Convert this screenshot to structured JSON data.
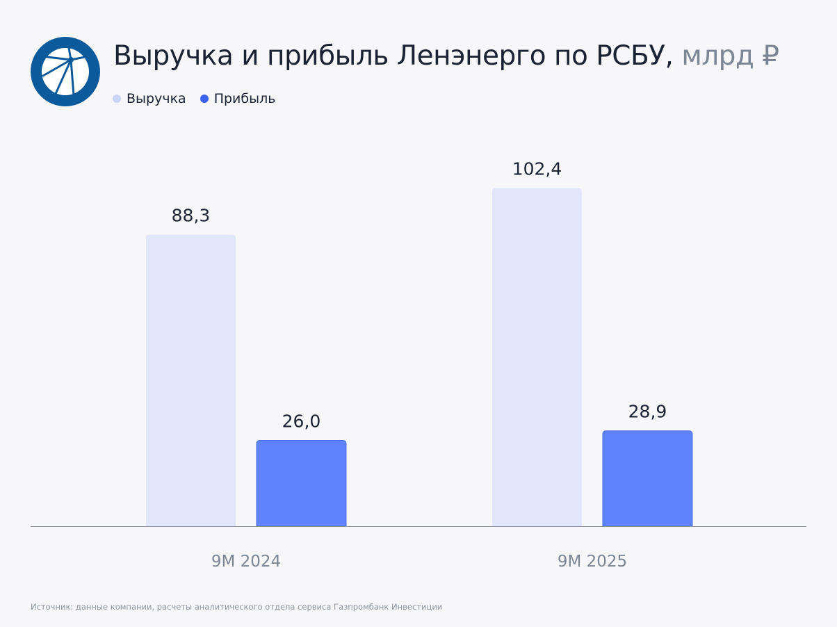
{
  "title": "Выручка и прибыль Ленэнерго по РСБУ,",
  "title_unit": "млрд ₽",
  "logo_icon": "lenenergo-logo",
  "source": "Источник: данные компании, расчеты аналитического отдела сервиса Газпромбанк Инвестиции",
  "chart_data": {
    "type": "bar",
    "title": "Выручка и прибыль Ленэнерго по РСБУ, млрд ₽",
    "categories": [
      "9M 2024",
      "9M 2025"
    ],
    "series": [
      {
        "name": "Выручка",
        "values": [
          88.3,
          102.4
        ],
        "labels": [
          "88,3",
          "102,4"
        ],
        "color": "#e1e6fc",
        "legend_color": "#c9d3f5"
      },
      {
        "name": "Прибыль",
        "values": [
          26.0,
          28.9
        ],
        "labels": [
          "26,0",
          "28,9"
        ],
        "color": "#5f82fd",
        "legend_color": "#3a63f3"
      }
    ],
    "ylim": [
      0,
      110
    ],
    "grid": false,
    "legend": "top-left"
  }
}
